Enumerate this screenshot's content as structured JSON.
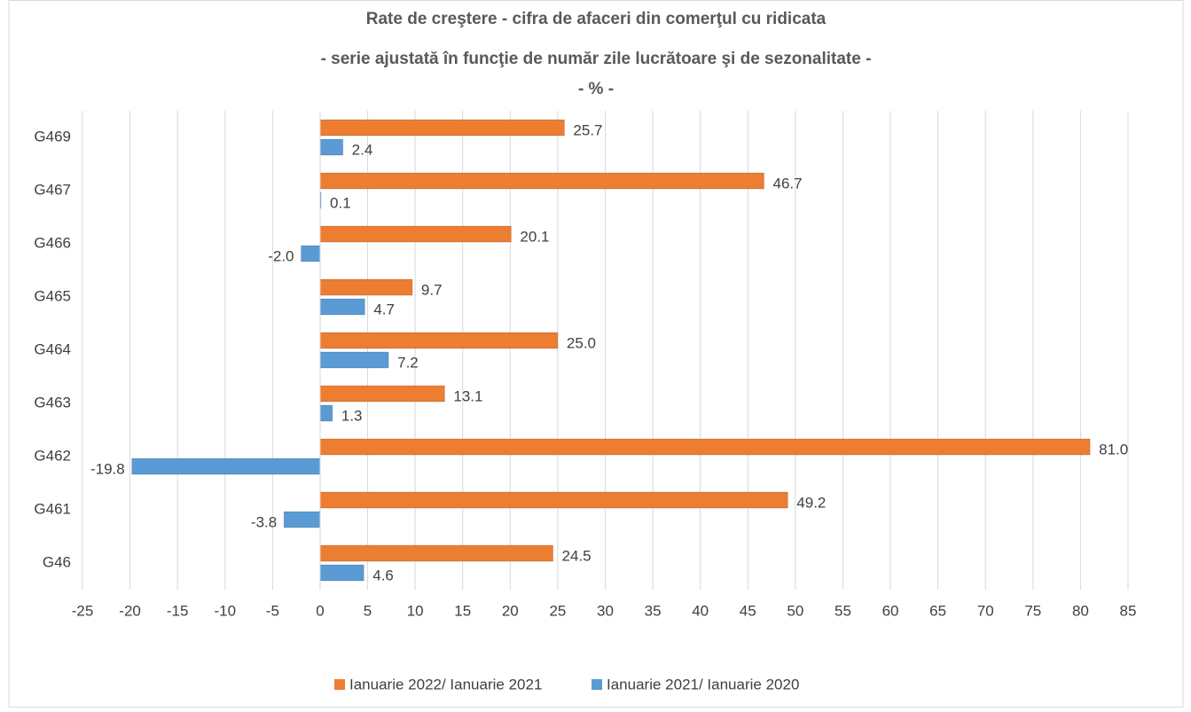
{
  "chart_data": {
    "type": "hbar",
    "title": [
      "Rate de creştere - cifra de afaceri din comerţul cu ridicata",
      "- serie ajustată în funcţie de număr zile lucrătoare şi de sezonalitate -",
      "- % -"
    ],
    "categories": [
      "G469",
      "G467",
      "G466",
      "G465",
      "G464",
      "G463",
      "G462",
      "G461",
      "G46"
    ],
    "series": [
      {
        "name": "Ianuarie 2022/ Ianuarie 2021",
        "color": "#ed7d31",
        "values": [
          25.7,
          46.7,
          20.1,
          9.7,
          25.0,
          13.1,
          81.0,
          49.2,
          24.5
        ],
        "value_labels": [
          "25.7",
          "46.7",
          "20.1",
          "9.7",
          "25.0",
          "13.1",
          "81.0",
          "49.2",
          "24.5"
        ]
      },
      {
        "name": "Ianuarie 2021/ Ianuarie 2020",
        "color": "#5b9bd5",
        "values": [
          2.4,
          0.1,
          -2.0,
          4.7,
          7.2,
          1.3,
          -19.8,
          -3.8,
          4.6
        ],
        "value_labels": [
          "2.4",
          "0.1",
          "-2.0",
          "4.7",
          "7.2",
          "1.3",
          "-19.8",
          "-3.8",
          "4.6"
        ]
      }
    ],
    "xlim": [
      -25,
      85
    ],
    "xticks": [
      -25,
      -20,
      -15,
      -10,
      -5,
      0,
      5,
      10,
      15,
      20,
      25,
      30,
      35,
      40,
      45,
      50,
      55,
      60,
      65,
      70,
      75,
      80,
      85
    ],
    "grid": true,
    "legend": "bottom"
  }
}
